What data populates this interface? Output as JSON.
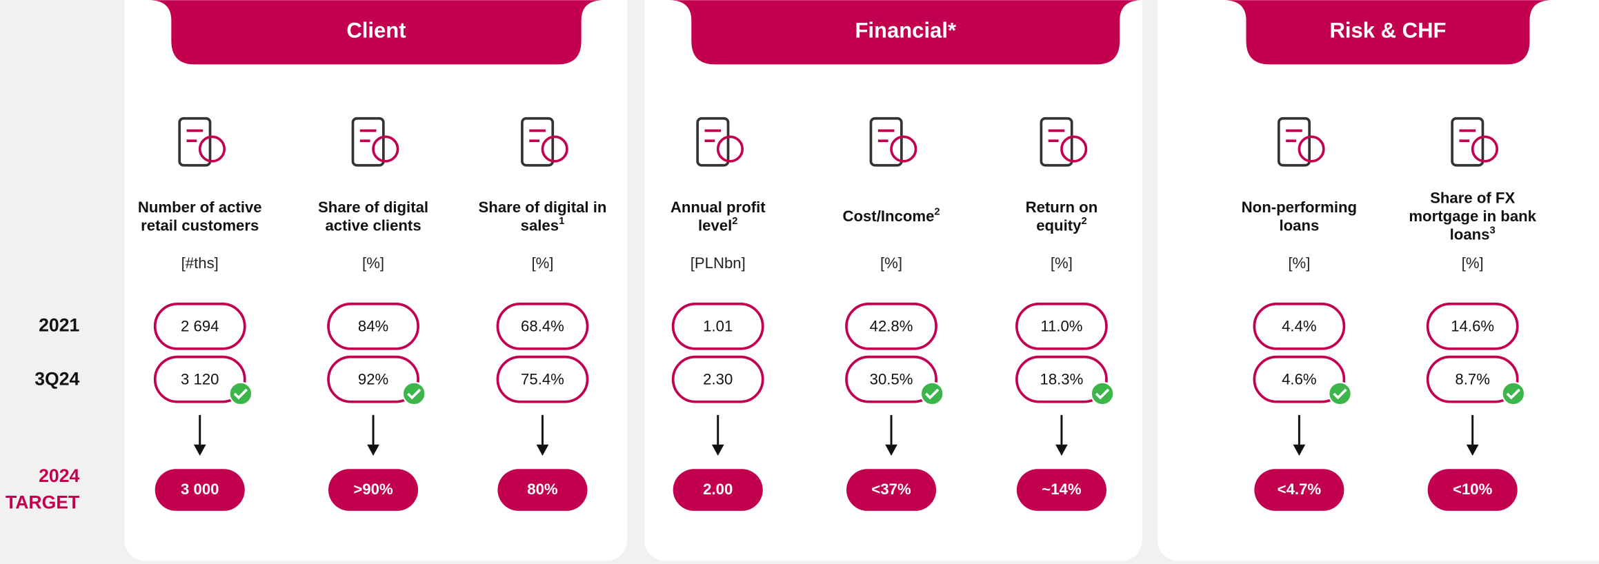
{
  "row_labels": [
    "2021",
    "3Q24"
  ],
  "target_label": [
    "2024",
    "TARGET"
  ],
  "panels": [
    {
      "title": "Client",
      "metrics": [
        {
          "name": [
            "Number of active",
            "retail customers"
          ],
          "unit": "[#ths]",
          "v2021": "2 694",
          "v3q24": "3 120",
          "target": "3 000",
          "check": true
        },
        {
          "name": [
            "Share of digital",
            "active clients"
          ],
          "unit": "[%]",
          "v2021": "84%",
          "v3q24": "92%",
          "target": ">90%",
          "check": true
        },
        {
          "name": [
            "Share of digital in",
            "sales"
          ],
          "sup": "1",
          "unit": "[%]",
          "v2021": "68.4%",
          "v3q24": "75.4%",
          "target": "80%",
          "check": false
        }
      ]
    },
    {
      "title": "Financial*",
      "metrics": [
        {
          "name": [
            "Annual profit",
            "level"
          ],
          "sup": "2",
          "unit": "[PLNbn]",
          "v2021": "1.01",
          "v3q24": "2.30",
          "target": "2.00",
          "check": false
        },
        {
          "name": [
            "Cost/Income"
          ],
          "sup": "2",
          "unit": "[%]",
          "v2021": "42.8%",
          "v3q24": "30.5%",
          "target": "<37%",
          "check": true
        },
        {
          "name": [
            "Return on",
            "equity"
          ],
          "sup": "2",
          "unit": "[%]",
          "v2021": "11.0%",
          "v3q24": "18.3%",
          "target": "~14%",
          "check": true
        }
      ]
    },
    {
      "title": "Risk & CHF",
      "metrics": [
        {
          "name": [
            "Non-performing",
            "loans"
          ],
          "unit": "[%]",
          "v2021": "4.4%",
          "v3q24": "4.6%",
          "target": "<4.7%",
          "check": true
        },
        {
          "name": [
            "Share of FX",
            "mortgage in bank",
            "loans"
          ],
          "sup": "3",
          "unit": "[%]",
          "v2021": "14.6%",
          "v3q24": "8.7%",
          "target": "<10%",
          "check": true
        }
      ]
    }
  ]
}
